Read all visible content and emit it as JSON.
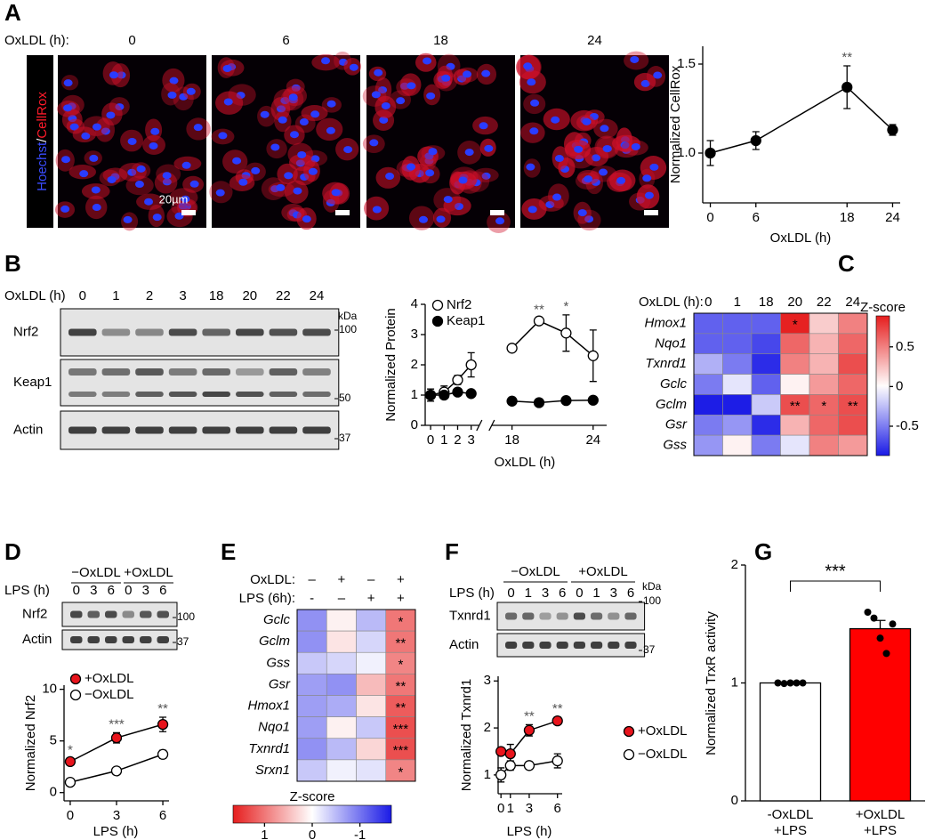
{
  "panel_labels": [
    "A",
    "B",
    "C",
    "D",
    "E",
    "F",
    "G"
  ],
  "panel_a": {
    "axis_label": "OxLDL (h):",
    "times": [
      "0",
      "6",
      "18",
      "24"
    ],
    "stain_1": "Hoechst",
    "separator": "/",
    "stain_2": "CellRox",
    "scale_bar": "20µm"
  },
  "blot_b": {
    "axis_label": "OxLDL (h)",
    "lanes": [
      "0",
      "1",
      "2",
      "3",
      "18",
      "20",
      "22",
      "24"
    ],
    "rows": [
      "Nrf2",
      "Keap1",
      "Actin"
    ],
    "unit": "kDa",
    "markers": [
      "100",
      "50",
      "37"
    ]
  },
  "blot_d": {
    "groups": [
      "−OxLDL",
      "+OxLDL"
    ],
    "axis_label": "LPS (h)",
    "lanes": [
      "0",
      "3",
      "6",
      "0",
      "3",
      "6"
    ],
    "rows": [
      "Nrf2",
      "Actin"
    ],
    "markers": [
      "100",
      "37"
    ]
  },
  "blot_f": {
    "groups": [
      "−OxLDL",
      "+OxLDL"
    ],
    "axis_label": "LPS (h)",
    "lanes": [
      "0",
      "1",
      "3",
      "6",
      "0",
      "1",
      "3",
      "6"
    ],
    "rows": [
      "Txnrd1",
      "Actin"
    ],
    "unit": "kDa",
    "markers": [
      "100",
      "37"
    ]
  },
  "chart_data": [
    {
      "type": "line",
      "y_label": "Normalized CellRox",
      "x_label": "OxLDL (h)",
      "x": [
        0,
        6,
        18,
        24
      ],
      "xlim": [
        -1,
        25
      ],
      "xticks": [
        0,
        6,
        18,
        24
      ],
      "ylim": [
        0.72,
        1.6
      ],
      "yticks": [
        {
          "value": 1,
          "label": "1.0"
        },
        {
          "value": 1.5,
          "label": "1.5"
        }
      ],
      "series": [
        {
          "color": "#000000",
          "marker_fill": "#000000",
          "values": [
            1.0,
            1.07,
            1.37,
            1.13
          ],
          "errors": [
            0.07,
            0.05,
            0.12,
            0.03
          ]
        }
      ],
      "significance": [
        null,
        null,
        "**",
        null
      ]
    },
    {
      "type": "line",
      "y_label": "Normalized Protein",
      "x_label": "OxLDL (h)",
      "x": [
        0,
        1,
        2,
        3,
        18,
        20,
        22,
        24
      ],
      "xlim": [
        -0.4,
        25
      ],
      "x_break": [
        3.6,
        16.5
      ],
      "xticks": [
        0,
        1,
        2,
        3,
        18,
        24
      ],
      "ylim": [
        0,
        4
      ],
      "yticks": [
        0,
        1,
        2,
        3,
        4
      ],
      "series": [
        {
          "name": "Nrf2",
          "color": "#000000",
          "marker_fill": "#ffffff",
          "values": [
            1.0,
            1.1,
            1.5,
            2.0,
            2.55,
            3.45,
            3.05,
            2.3
          ],
          "errors": [
            0.2,
            0.2,
            0.15,
            0.4,
            0.1,
            0.1,
            0.6,
            0.85
          ]
        },
        {
          "name": "Keap1",
          "color": "#000000",
          "marker_fill": "#000000",
          "values": [
            1.0,
            1.0,
            1.1,
            1.05,
            0.8,
            0.75,
            0.82,
            0.83
          ],
          "errors": [
            0.1,
            0.1,
            0.1,
            0.05,
            0.05,
            0.05,
            0.1,
            0.05
          ]
        }
      ],
      "significance": [
        null,
        null,
        null,
        null,
        null,
        "**",
        "*",
        null
      ]
    },
    {
      "type": "heatmap",
      "column_label": "OxLDL (h):",
      "columns": [
        "0",
        "1",
        "18",
        "20",
        "22",
        "24"
      ],
      "rows": [
        "Hmox1",
        "Nqo1",
        "Txnrd1",
        "Gclc",
        "Gclm",
        "Gsr",
        "Gss"
      ],
      "values": [
        [
          -0.6,
          -0.6,
          -0.6,
          0.88,
          0.2,
          0.5
        ],
        [
          -0.6,
          -0.6,
          -0.7,
          0.6,
          0.3,
          0.6
        ],
        [
          -0.3,
          -0.5,
          -0.8,
          0.5,
          0.3,
          0.7
        ],
        [
          -0.5,
          -0.1,
          -0.6,
          0.05,
          0.4,
          0.6
        ],
        [
          -0.86,
          -0.86,
          -0.2,
          0.7,
          0.6,
          0.7
        ],
        [
          -0.5,
          -0.4,
          -0.8,
          0.3,
          0.6,
          0.7
        ],
        [
          -0.4,
          0.05,
          -0.5,
          -0.1,
          0.5,
          0.4
        ]
      ],
      "significance": [
        [
          null,
          null,
          null,
          "*",
          null,
          null
        ],
        [
          null,
          null,
          null,
          null,
          null,
          null
        ],
        [
          null,
          null,
          null,
          null,
          null,
          null
        ],
        [
          null,
          null,
          null,
          null,
          null,
          null
        ],
        [
          null,
          null,
          null,
          "**",
          "*",
          "**"
        ],
        [
          null,
          null,
          null,
          null,
          null,
          null
        ],
        [
          null,
          null,
          null,
          null,
          null,
          null
        ]
      ],
      "colorbar_label": "Z-score",
      "zlim": [
        -0.87,
        0.89
      ],
      "zticks": [
        {
          "value": 0.5,
          "label": "0.5"
        },
        0,
        {
          "value": -0.5,
          "label": "-0.5"
        }
      ],
      "colormap": [
        "#1a1ae6",
        "#ffffff",
        "#e61e1e"
      ]
    },
    {
      "type": "line",
      "y_label": "Normalized Nrf2",
      "x_label": "LPS (h)",
      "x": [
        0,
        3,
        6
      ],
      "xlim": [
        -0.4,
        6.4
      ],
      "xticks": [
        0,
        3,
        6
      ],
      "ylim": [
        -0.8,
        10.4
      ],
      "yticks": [
        0,
        5,
        10
      ],
      "series": [
        {
          "name": "+OxLDL",
          "color": "#000000",
          "marker_fill": "#e8141c",
          "values": [
            3.0,
            5.3,
            6.6
          ],
          "errors": [
            0.3,
            0.5,
            0.7
          ]
        },
        {
          "name": "−OxLDL",
          "color": "#000000",
          "marker_fill": "#ffffff",
          "values": [
            1.0,
            2.1,
            3.7
          ],
          "errors": [
            0.3,
            0.15,
            0.4
          ]
        }
      ],
      "significance": [
        "*",
        "***",
        "**"
      ]
    },
    {
      "type": "heatmap",
      "column_headers": [
        {
          "label": "OxLDL:",
          "values": [
            "–",
            "+",
            "–",
            "+"
          ]
        },
        {
          "label": "LPS (6h):",
          "values": [
            "-",
            "–",
            "+",
            "+"
          ]
        }
      ],
      "rows": [
        "Gclc",
        "Gclm",
        "Gss",
        "Gsr",
        "Hmox1",
        "Nqo1",
        "Txnrd1",
        "Srxn1"
      ],
      "values": [
        [
          -0.8,
          0.1,
          -0.5,
          1.0
        ],
        [
          -0.8,
          0.2,
          -0.3,
          1.0
        ],
        [
          -0.4,
          -0.3,
          -0.1,
          0.9
        ],
        [
          -0.7,
          -0.8,
          0.5,
          1.0
        ],
        [
          -0.7,
          -0.6,
          0.2,
          1.2
        ],
        [
          -0.7,
          0.1,
          -0.4,
          1.3
        ],
        [
          -0.8,
          -0.5,
          0.3,
          1.3
        ],
        [
          -0.4,
          -0.1,
          -0.2,
          0.9
        ]
      ],
      "significance": [
        [
          null,
          null,
          null,
          "*"
        ],
        [
          null,
          null,
          null,
          "**"
        ],
        [
          null,
          null,
          null,
          "*"
        ],
        [
          null,
          null,
          null,
          "**"
        ],
        [
          null,
          null,
          null,
          "**"
        ],
        [
          null,
          null,
          null,
          "***"
        ],
        [
          null,
          null,
          null,
          "***"
        ],
        [
          null,
          null,
          null,
          "*"
        ]
      ],
      "colorbar_label": "Z-score",
      "zlim": [
        -1.66,
        1.66
      ],
      "zticks": [
        1,
        0,
        -1
      ],
      "colormap": [
        "#1a1ae6",
        "#ffffff",
        "#e61e1e"
      ]
    },
    {
      "type": "line",
      "y_label": "Normalized Txnrd1",
      "x_label": "LPS (h)",
      "x": [
        0,
        1,
        3,
        6
      ],
      "xlim": [
        -0.3,
        6.5
      ],
      "xticks": [
        0,
        1,
        3,
        6
      ],
      "ylim": [
        0.6,
        3.1
      ],
      "yticks": [
        1,
        2,
        3
      ],
      "series": [
        {
          "name": "+OxLDL",
          "color": "#000000",
          "marker_fill": "#e8141c",
          "values": [
            1.5,
            1.45,
            1.95,
            2.15
          ],
          "errors": [
            0.05,
            0.2,
            0.12,
            0.08
          ]
        },
        {
          "name": "−OxLDL",
          "color": "#000000",
          "marker_fill": "#ffffff",
          "values": [
            1.0,
            1.2,
            1.2,
            1.3
          ],
          "errors": [
            0.15,
            0.1,
            0.08,
            0.15
          ]
        }
      ],
      "significance": [
        null,
        null,
        "**",
        "**"
      ]
    },
    {
      "type": "bar",
      "y_label": "Normalized TrxR activity",
      "categories": [
        "-OxLDL\n+LPS",
        "+OxLDL\n+LPS"
      ],
      "values": [
        1.0,
        1.46
      ],
      "errors": [
        0.01,
        0.07
      ],
      "points": [
        [
          1.0,
          0.995,
          1.0,
          1.0,
          1.0
        ],
        [
          1.6,
          1.55,
          1.38,
          1.25,
          1.5
        ]
      ],
      "colors": [
        "#ffffff",
        "#ff0000"
      ],
      "ylim": [
        0,
        2
      ],
      "yticks": [
        0,
        1,
        2
      ],
      "significance": "***"
    }
  ]
}
